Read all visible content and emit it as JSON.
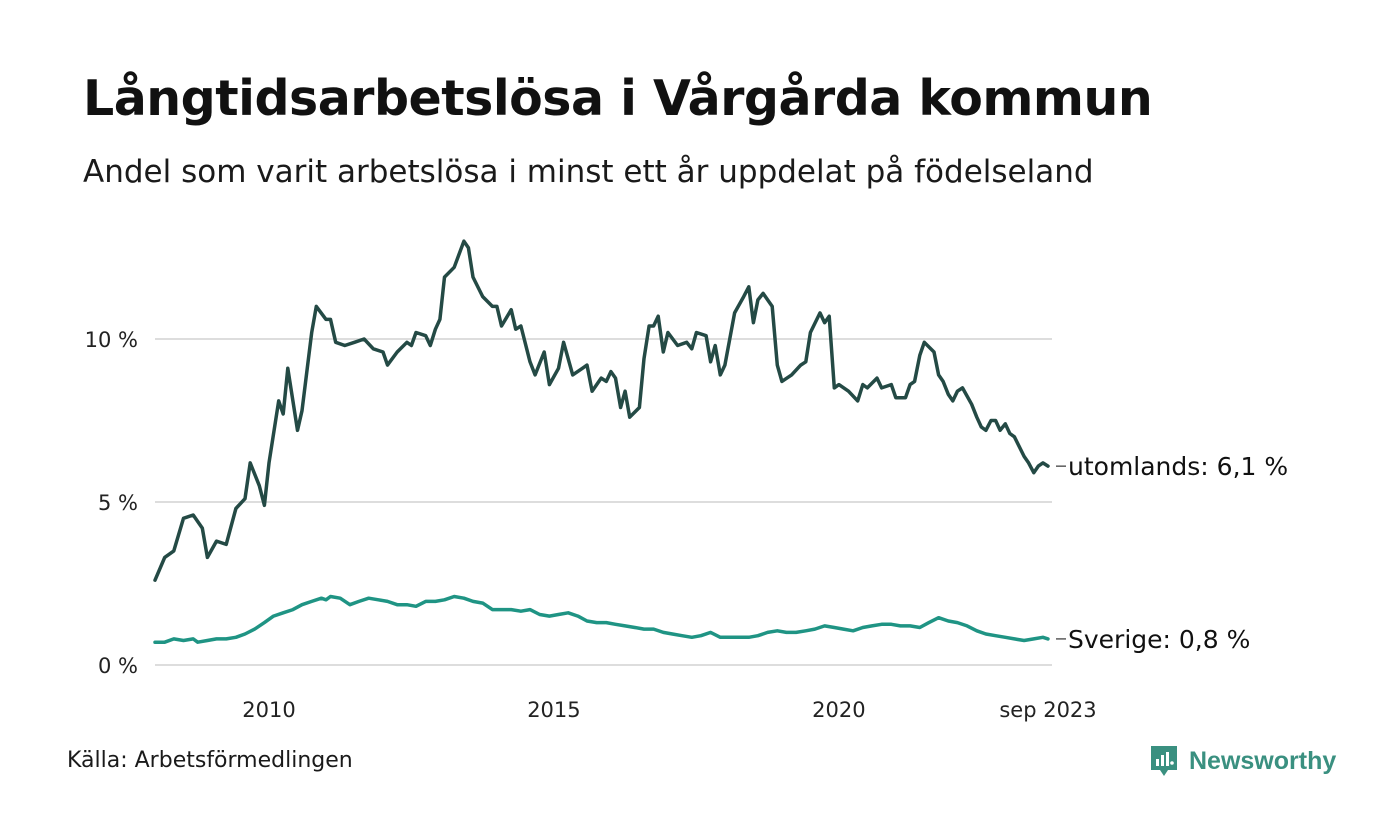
{
  "title": "Långtidsarbetslösa i Vårgårda kommun",
  "subtitle": "Andel som varit arbetslösa i minst ett år uppdelat på födelseland",
  "source": "Källa: Arbetsförmedlingen",
  "brand": {
    "name": "Newsworthy",
    "icon": "newsworthy-logo-icon",
    "color": "#3a9080"
  },
  "chart_data": {
    "type": "line",
    "title": "Långtidsarbetslösa i Vårgårda kommun",
    "xlabel": "",
    "ylabel": "",
    "ylim": [
      0,
      13.5
    ],
    "grid": true,
    "y_ticks": [
      {
        "value": 0,
        "label": "0 %"
      },
      {
        "value": 5,
        "label": "5 %"
      },
      {
        "value": 10,
        "label": "10 %"
      }
    ],
    "x_ticks": [
      {
        "value": 2010,
        "label": "2010"
      },
      {
        "value": 2015,
        "label": "2015"
      },
      {
        "value": 2020,
        "label": "2020"
      },
      {
        "value": 2023.67,
        "label": "sep 2023"
      }
    ],
    "xlim": [
      2008.0,
      2023.67
    ],
    "series": [
      {
        "name": "utomlands",
        "end_label": "utomlands: 6,1 %",
        "color": "#244a45",
        "points": [
          [
            2008.0,
            2.6
          ],
          [
            2008.17,
            3.3
          ],
          [
            2008.33,
            3.5
          ],
          [
            2008.5,
            4.5
          ],
          [
            2008.67,
            4.6
          ],
          [
            2008.83,
            4.2
          ],
          [
            2008.92,
            3.3
          ],
          [
            2009.08,
            3.8
          ],
          [
            2009.25,
            3.7
          ],
          [
            2009.42,
            4.8
          ],
          [
            2009.58,
            5.1
          ],
          [
            2009.67,
            6.2
          ],
          [
            2009.83,
            5.5
          ],
          [
            2009.92,
            4.9
          ],
          [
            2010.0,
            6.2
          ],
          [
            2010.17,
            8.1
          ],
          [
            2010.25,
            7.7
          ],
          [
            2010.33,
            9.1
          ],
          [
            2010.5,
            7.2
          ],
          [
            2010.58,
            7.8
          ],
          [
            2010.75,
            10.2
          ],
          [
            2010.83,
            11.0
          ],
          [
            2011.0,
            10.6
          ],
          [
            2011.08,
            10.6
          ],
          [
            2011.17,
            9.9
          ],
          [
            2011.33,
            9.8
          ],
          [
            2011.5,
            9.9
          ],
          [
            2011.67,
            10.0
          ],
          [
            2011.83,
            9.7
          ],
          [
            2012.0,
            9.6
          ],
          [
            2012.08,
            9.2
          ],
          [
            2012.25,
            9.6
          ],
          [
            2012.42,
            9.9
          ],
          [
            2012.5,
            9.8
          ],
          [
            2012.58,
            10.2
          ],
          [
            2012.75,
            10.1
          ],
          [
            2012.83,
            9.8
          ],
          [
            2012.92,
            10.3
          ],
          [
            2013.0,
            10.6
          ],
          [
            2013.08,
            11.9
          ],
          [
            2013.25,
            12.2
          ],
          [
            2013.42,
            13.0
          ],
          [
            2013.5,
            12.8
          ],
          [
            2013.58,
            11.9
          ],
          [
            2013.75,
            11.3
          ],
          [
            2013.92,
            11.0
          ],
          [
            2014.0,
            11.0
          ],
          [
            2014.08,
            10.4
          ],
          [
            2014.25,
            10.9
          ],
          [
            2014.33,
            10.3
          ],
          [
            2014.42,
            10.4
          ],
          [
            2014.58,
            9.3
          ],
          [
            2014.67,
            8.9
          ],
          [
            2014.83,
            9.6
          ],
          [
            2014.92,
            8.6
          ],
          [
            2015.08,
            9.1
          ],
          [
            2015.17,
            9.9
          ],
          [
            2015.33,
            8.9
          ],
          [
            2015.5,
            9.1
          ],
          [
            2015.58,
            9.2
          ],
          [
            2015.67,
            8.4
          ],
          [
            2015.83,
            8.8
          ],
          [
            2015.92,
            8.7
          ],
          [
            2016.0,
            9.0
          ],
          [
            2016.08,
            8.8
          ],
          [
            2016.17,
            7.9
          ],
          [
            2016.25,
            8.4
          ],
          [
            2016.33,
            7.6
          ],
          [
            2016.5,
            7.9
          ],
          [
            2016.58,
            9.4
          ],
          [
            2016.67,
            10.4
          ],
          [
            2016.75,
            10.4
          ],
          [
            2016.83,
            10.7
          ],
          [
            2016.92,
            9.6
          ],
          [
            2017.0,
            10.2
          ],
          [
            2017.17,
            9.8
          ],
          [
            2017.33,
            9.9
          ],
          [
            2017.42,
            9.7
          ],
          [
            2017.5,
            10.2
          ],
          [
            2017.67,
            10.1
          ],
          [
            2017.75,
            9.3
          ],
          [
            2017.83,
            9.8
          ],
          [
            2017.92,
            8.9
          ],
          [
            2018.0,
            9.2
          ],
          [
            2018.17,
            10.8
          ],
          [
            2018.33,
            11.3
          ],
          [
            2018.42,
            11.6
          ],
          [
            2018.5,
            10.5
          ],
          [
            2018.58,
            11.2
          ],
          [
            2018.67,
            11.4
          ],
          [
            2018.83,
            11.0
          ],
          [
            2018.92,
            9.2
          ],
          [
            2019.0,
            8.7
          ],
          [
            2019.17,
            8.9
          ],
          [
            2019.33,
            9.2
          ],
          [
            2019.42,
            9.3
          ],
          [
            2019.5,
            10.2
          ],
          [
            2019.67,
            10.8
          ],
          [
            2019.75,
            10.5
          ],
          [
            2019.83,
            10.7
          ],
          [
            2019.92,
            8.5
          ],
          [
            2020.0,
            8.6
          ],
          [
            2020.17,
            8.4
          ],
          [
            2020.33,
            8.1
          ],
          [
            2020.42,
            8.6
          ],
          [
            2020.5,
            8.5
          ],
          [
            2020.67,
            8.8
          ],
          [
            2020.75,
            8.5
          ],
          [
            2020.92,
            8.6
          ],
          [
            2021.0,
            8.2
          ],
          [
            2021.17,
            8.2
          ],
          [
            2021.25,
            8.6
          ],
          [
            2021.33,
            8.7
          ],
          [
            2021.42,
            9.5
          ],
          [
            2021.5,
            9.9
          ],
          [
            2021.67,
            9.6
          ],
          [
            2021.75,
            8.9
          ],
          [
            2021.83,
            8.7
          ],
          [
            2021.92,
            8.3
          ],
          [
            2022.0,
            8.1
          ],
          [
            2022.08,
            8.4
          ],
          [
            2022.17,
            8.5
          ],
          [
            2022.33,
            8.0
          ],
          [
            2022.42,
            7.6
          ],
          [
            2022.5,
            7.3
          ],
          [
            2022.58,
            7.2
          ],
          [
            2022.67,
            7.5
          ],
          [
            2022.75,
            7.5
          ],
          [
            2022.83,
            7.2
          ],
          [
            2022.92,
            7.4
          ],
          [
            2023.0,
            7.1
          ],
          [
            2023.08,
            7.0
          ],
          [
            2023.25,
            6.4
          ],
          [
            2023.33,
            6.2
          ],
          [
            2023.42,
            5.9
          ],
          [
            2023.5,
            6.1
          ],
          [
            2023.58,
            6.2
          ],
          [
            2023.67,
            6.1
          ]
        ]
      },
      {
        "name": "Sverige",
        "end_label": "Sverige: 0,8 %",
        "color": "#1f9484",
        "points": [
          [
            2008.0,
            0.7
          ],
          [
            2008.17,
            0.7
          ],
          [
            2008.33,
            0.8
          ],
          [
            2008.5,
            0.75
          ],
          [
            2008.67,
            0.8
          ],
          [
            2008.75,
            0.7
          ],
          [
            2008.92,
            0.75
          ],
          [
            2009.08,
            0.8
          ],
          [
            2009.25,
            0.8
          ],
          [
            2009.42,
            0.85
          ],
          [
            2009.58,
            0.95
          ],
          [
            2009.75,
            1.1
          ],
          [
            2009.92,
            1.3
          ],
          [
            2010.08,
            1.5
          ],
          [
            2010.25,
            1.6
          ],
          [
            2010.42,
            1.7
          ],
          [
            2010.58,
            1.85
          ],
          [
            2010.75,
            1.95
          ],
          [
            2010.92,
            2.05
          ],
          [
            2011.0,
            2.0
          ],
          [
            2011.08,
            2.1
          ],
          [
            2011.25,
            2.05
          ],
          [
            2011.42,
            1.85
          ],
          [
            2011.58,
            1.95
          ],
          [
            2011.75,
            2.05
          ],
          [
            2011.92,
            2.0
          ],
          [
            2012.08,
            1.95
          ],
          [
            2012.25,
            1.85
          ],
          [
            2012.42,
            1.85
          ],
          [
            2012.58,
            1.8
          ],
          [
            2012.75,
            1.95
          ],
          [
            2012.92,
            1.95
          ],
          [
            2013.08,
            2.0
          ],
          [
            2013.25,
            2.1
          ],
          [
            2013.42,
            2.05
          ],
          [
            2013.58,
            1.95
          ],
          [
            2013.75,
            1.9
          ],
          [
            2013.92,
            1.7
          ],
          [
            2014.08,
            1.7
          ],
          [
            2014.25,
            1.7
          ],
          [
            2014.42,
            1.65
          ],
          [
            2014.58,
            1.7
          ],
          [
            2014.75,
            1.55
          ],
          [
            2014.92,
            1.5
          ],
          [
            2015.08,
            1.55
          ],
          [
            2015.25,
            1.6
          ],
          [
            2015.42,
            1.5
          ],
          [
            2015.58,
            1.35
          ],
          [
            2015.75,
            1.3
          ],
          [
            2015.92,
            1.3
          ],
          [
            2016.08,
            1.25
          ],
          [
            2016.25,
            1.2
          ],
          [
            2016.42,
            1.15
          ],
          [
            2016.58,
            1.1
          ],
          [
            2016.75,
            1.1
          ],
          [
            2016.92,
            1.0
          ],
          [
            2017.08,
            0.95
          ],
          [
            2017.25,
            0.9
          ],
          [
            2017.42,
            0.85
          ],
          [
            2017.58,
            0.9
          ],
          [
            2017.75,
            1.0
          ],
          [
            2017.92,
            0.85
          ],
          [
            2018.08,
            0.85
          ],
          [
            2018.25,
            0.85
          ],
          [
            2018.42,
            0.85
          ],
          [
            2018.58,
            0.9
          ],
          [
            2018.75,
            1.0
          ],
          [
            2018.92,
            1.05
          ],
          [
            2019.08,
            1.0
          ],
          [
            2019.25,
            1.0
          ],
          [
            2019.42,
            1.05
          ],
          [
            2019.58,
            1.1
          ],
          [
            2019.75,
            1.2
          ],
          [
            2019.92,
            1.15
          ],
          [
            2020.08,
            1.1
          ],
          [
            2020.25,
            1.05
          ],
          [
            2020.42,
            1.15
          ],
          [
            2020.58,
            1.2
          ],
          [
            2020.75,
            1.25
          ],
          [
            2020.92,
            1.25
          ],
          [
            2021.08,
            1.2
          ],
          [
            2021.25,
            1.2
          ],
          [
            2021.42,
            1.15
          ],
          [
            2021.58,
            1.3
          ],
          [
            2021.75,
            1.45
          ],
          [
            2021.92,
            1.35
          ],
          [
            2022.08,
            1.3
          ],
          [
            2022.25,
            1.2
          ],
          [
            2022.42,
            1.05
          ],
          [
            2022.58,
            0.95
          ],
          [
            2022.75,
            0.9
          ],
          [
            2022.92,
            0.85
          ],
          [
            2023.08,
            0.8
          ],
          [
            2023.25,
            0.75
          ],
          [
            2023.42,
            0.8
          ],
          [
            2023.58,
            0.85
          ],
          [
            2023.67,
            0.8
          ]
        ]
      }
    ]
  }
}
